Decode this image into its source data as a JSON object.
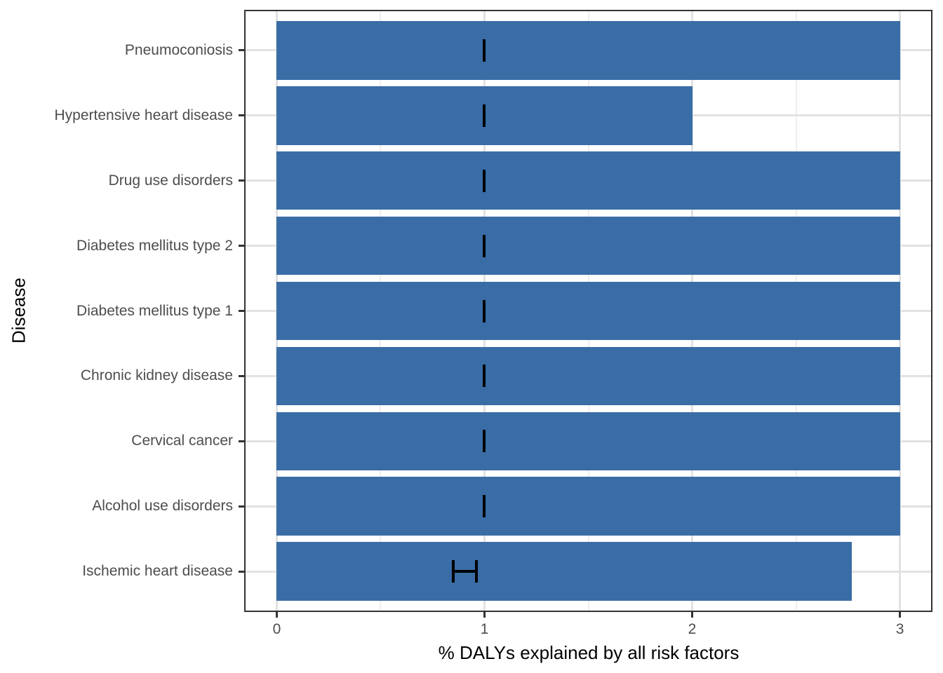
{
  "chart_data": {
    "type": "bar",
    "orientation": "horizontal",
    "title": "",
    "xlabel": "% DALYs explained by all risk factors",
    "ylabel": "Disease",
    "categories": [
      "Pneumoconiosis",
      "Hypertensive heart disease",
      "Drug use disorders",
      "Diabetes mellitus type 2",
      "Diabetes mellitus type 1",
      "Chronic kidney disease",
      "Cervical cancer",
      "Alcohol use disorders",
      "Ischemic heart disease"
    ],
    "values": [
      3.0,
      2.0,
      3.0,
      3.0,
      3.0,
      3.0,
      3.0,
      3.0,
      2.77
    ],
    "error_bars": [
      {
        "low": 1.0,
        "high": 1.0
      },
      {
        "low": 1.0,
        "high": 1.0
      },
      {
        "low": 1.0,
        "high": 1.0
      },
      {
        "low": 1.0,
        "high": 1.0
      },
      {
        "low": 1.0,
        "high": 1.0
      },
      {
        "low": 1.0,
        "high": 1.0
      },
      {
        "low": 1.0,
        "high": 1.0
      },
      {
        "low": 1.0,
        "high": 1.0
      },
      {
        "low": 0.85,
        "high": 0.96
      }
    ],
    "x_ticks": [
      0,
      1,
      2,
      3
    ],
    "x_tick_labels": [
      "0",
      "1",
      "2",
      "3"
    ],
    "x_minor_gridlines": [
      0.5,
      1.5,
      2.5
    ],
    "xlim": [
      -0.15,
      3.15
    ],
    "grid": true,
    "legend": "none",
    "style": {
      "bar_fill": "#3A6DA6",
      "errorbar_color": "#000000",
      "grid_major_color": "#E2E2E2",
      "grid_minor_color": "#EEEEEE",
      "panel_border_color": "#333333",
      "tick_label_color": "#4D4D4D",
      "axis_title_color": "#000000",
      "background": "#FFFFFF"
    }
  }
}
